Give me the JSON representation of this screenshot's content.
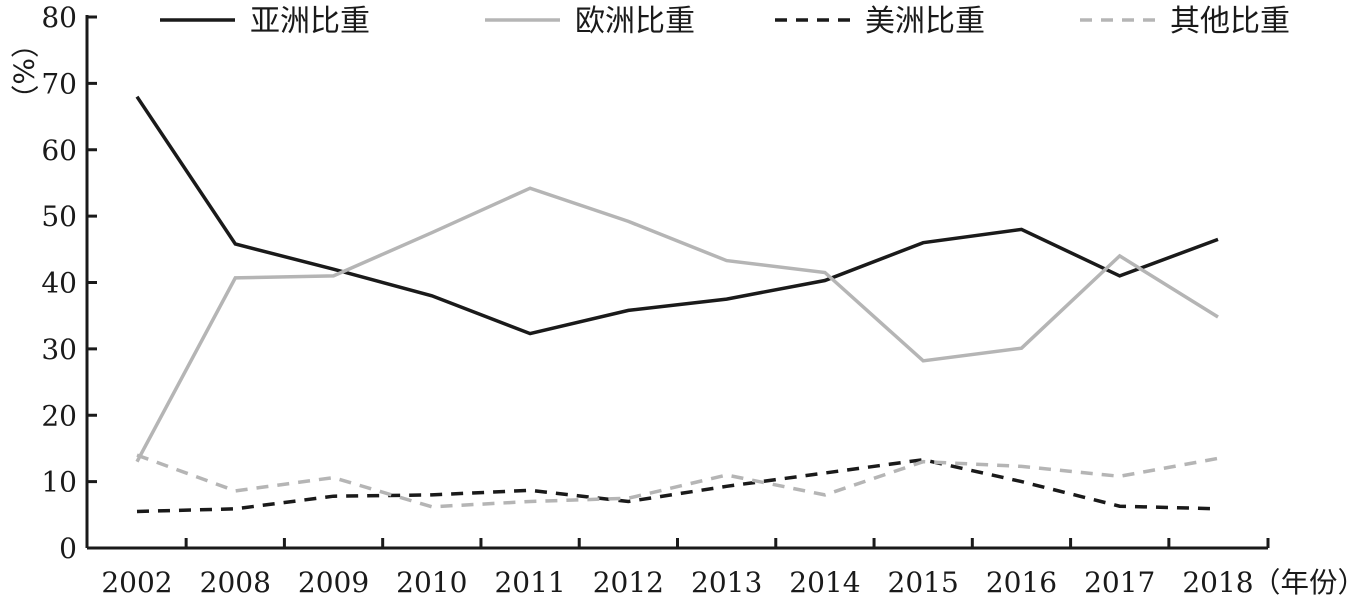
{
  "chart_data": {
    "type": "line",
    "x": [
      "2002",
      "2008",
      "2009",
      "2010",
      "2011",
      "2012",
      "2013",
      "2014",
      "2015",
      "2016",
      "2017",
      "2018"
    ],
    "ylim": [
      0,
      80
    ],
    "yticks": [
      "0",
      "10",
      "20",
      "30",
      "40",
      "50",
      "60",
      "70",
      "80"
    ],
    "ylabel": "（%）",
    "xlabel": "（年份）",
    "grid": false,
    "legend_position": "top",
    "series": [
      {
        "name": "亚洲比重",
        "values": [
          68,
          45.8,
          42,
          38,
          32.3,
          35.8,
          37.5,
          40.3,
          46,
          48,
          41,
          46.5
        ],
        "color": "#1a1a1a",
        "dash": "solid"
      },
      {
        "name": "欧洲比重",
        "values": [
          13,
          40.7,
          41,
          47.5,
          54.2,
          49.2,
          43.3,
          41.5,
          28.2,
          30.1,
          44,
          34.8
        ],
        "color": "#b5b5b5",
        "dash": "solid"
      },
      {
        "name": "美洲比重",
        "values": [
          5.5,
          5.9,
          7.8,
          8,
          8.7,
          7,
          9.3,
          11.3,
          13.3,
          10,
          6.3,
          5.9
        ],
        "color": "#1a1a1a",
        "dash": "dashed"
      },
      {
        "name": "其他比重",
        "values": [
          14,
          8.6,
          10.6,
          6.2,
          7,
          7.5,
          11,
          8,
          13,
          12.3,
          10.8,
          13.5
        ],
        "color": "#b5b5b5",
        "dash": "dashed"
      }
    ]
  }
}
